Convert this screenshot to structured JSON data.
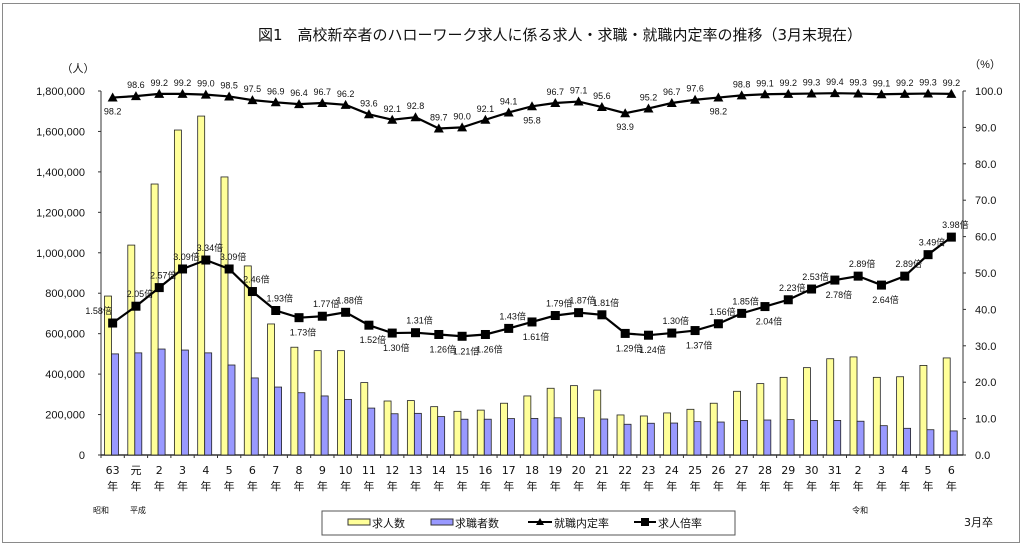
{
  "chart_data": {
    "type": "bar",
    "title": "図1　高校新卒者のハローワーク求人に係る求人・求職・就職内定率の推移（3月末現在）",
    "ylabel_left": "（人）",
    "ylabel_right": "（%）",
    "ylim_left": [
      0,
      1800000
    ],
    "ylim_right": [
      0,
      100
    ],
    "left_ticks": [
      "0",
      "200,000",
      "400,000",
      "600,000",
      "800,000",
      "1,000,000",
      "1,200,000",
      "1,400,000",
      "1,600,000",
      "1,800,000"
    ],
    "right_ticks": [
      "0.0",
      "10.0",
      "20.0",
      "30.0",
      "40.0",
      "50.0",
      "60.0",
      "70.0",
      "80.0",
      "90.0",
      "100.0"
    ],
    "categories": [
      "63",
      "元",
      "2",
      "3",
      "4",
      "5",
      "6",
      "7",
      "8",
      "9",
      "10",
      "11",
      "12",
      "13",
      "14",
      "15",
      "16",
      "17",
      "18",
      "19",
      "20",
      "21",
      "22",
      "23",
      "24",
      "25",
      "26",
      "27",
      "28",
      "29",
      "30",
      "31",
      "2",
      "3",
      "4",
      "5",
      "6"
    ],
    "category_suffix": "年",
    "eras": [
      {
        "label": "昭和",
        "start_index": 0
      },
      {
        "label": "平成",
        "start_index": 1
      },
      {
        "label": "令和",
        "start_index": 32
      }
    ],
    "footnote": "3月卒",
    "ratio_suffix": "倍",
    "series": [
      {
        "name": "求人数",
        "type": "bar",
        "axis": "left",
        "color": "#ffff99",
        "values": [
          786000,
          1038000,
          1340000,
          1607000,
          1676000,
          1375000,
          935000,
          648000,
          533000,
          516000,
          516000,
          358000,
          267000,
          269000,
          239000,
          216000,
          222000,
          256000,
          292000,
          330000,
          343000,
          321000,
          198000,
          193000,
          208000,
          226000,
          256000,
          315000,
          353000,
          384000,
          432000,
          476000,
          485000,
          384000,
          387000,
          443000,
          480000
        ]
      },
      {
        "name": "求職者数",
        "type": "bar",
        "axis": "left",
        "color": "#9999ff",
        "values": [
          500000,
          505000,
          524000,
          519000,
          505000,
          445000,
          381000,
          336000,
          308000,
          292000,
          275000,
          232000,
          204000,
          206000,
          190000,
          177000,
          177000,
          180000,
          181000,
          184000,
          184000,
          178000,
          152000,
          157000,
          158000,
          165000,
          163000,
          171000,
          173000,
          175000,
          171000,
          171000,
          167000,
          145000,
          132000,
          125000,
          119000
        ]
      },
      {
        "name": "就職内定率",
        "type": "line",
        "axis": "right",
        "marker": "triangle",
        "color": "#000000",
        "values": [
          98.2,
          98.6,
          99.2,
          99.2,
          99.0,
          98.5,
          97.5,
          96.9,
          96.4,
          96.7,
          96.2,
          93.6,
          92.1,
          92.8,
          89.7,
          90.0,
          92.1,
          94.1,
          95.8,
          96.7,
          97.1,
          95.6,
          93.9,
          95.2,
          96.7,
          97.6,
          98.2,
          98.8,
          99.1,
          99.2,
          99.3,
          99.4,
          99.3,
          99.1,
          99.2,
          99.3,
          99.2
        ],
        "labels": [
          "98.2",
          "98.6",
          "99.2",
          "99.2",
          "99.0",
          "98.5",
          "97.5",
          "96.9",
          "96.4",
          "96.7",
          "96.2",
          "93.6",
          "92.1",
          "92.8",
          "89.7",
          "90.0",
          "92.1",
          "94.1",
          "95.8",
          "96.7",
          "97.1",
          "95.6",
          "93.9",
          "95.2",
          "96.7",
          "97.6",
          "98.2",
          "98.8",
          "99.1",
          "99.2",
          "99.3",
          "99.4",
          "99.3",
          "99.1",
          "99.2",
          "99.3",
          "99.2"
        ],
        "label_below": [
          0,
          18,
          22,
          26
        ]
      },
      {
        "name": "求人倍率",
        "type": "line",
        "axis": "ratio",
        "marker": "square",
        "color": "#000000",
        "values": [
          1.58,
          2.05,
          2.57,
          3.09,
          3.34,
          3.09,
          2.46,
          1.93,
          1.73,
          1.77,
          1.88,
          1.52,
          1.3,
          1.31,
          1.26,
          1.21,
          1.26,
          1.43,
          1.61,
          1.79,
          1.87,
          1.81,
          1.29,
          1.24,
          1.3,
          1.37,
          1.56,
          1.85,
          2.04,
          2.23,
          2.53,
          2.78,
          2.89,
          2.64,
          2.89,
          3.49,
          3.98
        ],
        "labels": [
          "1.58",
          "2.05",
          "2.57",
          "3.09",
          "3.34",
          "3.09",
          "2.46",
          "1.93",
          "1.73",
          "1.77",
          "1.88",
          "1.52",
          "1.30",
          "1.31",
          "1.26",
          "1.21",
          "1.26",
          "1.43",
          "1.61",
          "1.79",
          "1.87",
          "1.81",
          "1.29",
          "1.24",
          "1.30",
          "1.37",
          "1.56",
          "1.85",
          "2.04",
          "2.23",
          "2.53",
          "2.78",
          "2.89",
          "2.64",
          "2.89",
          "3.49",
          "3.98"
        ],
        "label_below": [
          8,
          11,
          12,
          14,
          15,
          16,
          18,
          22,
          23,
          25,
          28,
          31,
          33
        ]
      }
    ],
    "legend": {
      "position": "bottom",
      "items": [
        {
          "label": "求人数",
          "marker": "bar-yellow"
        },
        {
          "label": "求職者数",
          "marker": "bar-blue"
        },
        {
          "label": "就職内定率",
          "marker": "line-triangle"
        },
        {
          "label": "求人倍率",
          "marker": "line-square"
        }
      ]
    }
  }
}
